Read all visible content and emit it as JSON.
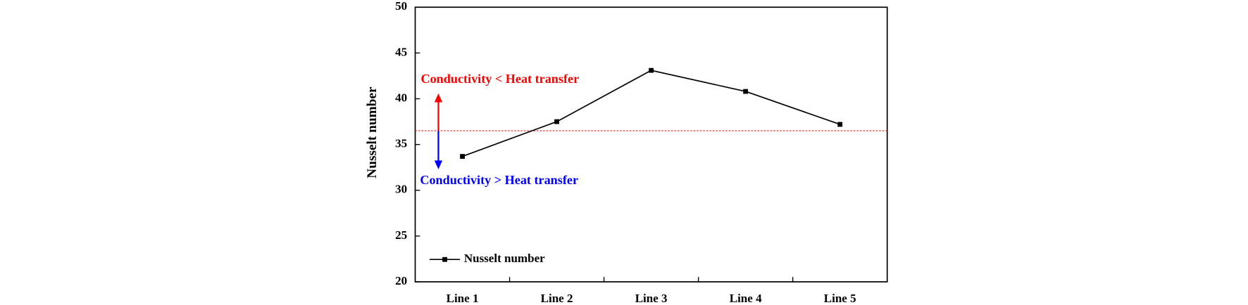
{
  "chart_data": {
    "type": "line",
    "y_label": "Nusselt number",
    "categories": [
      "Line 1",
      "Line 2",
      "Line 3",
      "Line 4",
      "Line 5"
    ],
    "series": [
      {
        "name": "Nusselt number",
        "color": "#000000",
        "values": [
          33.7,
          37.5,
          43.1,
          40.8,
          37.2
        ]
      }
    ],
    "ylim": [
      20,
      50
    ],
    "yticks": [
      20,
      25,
      30,
      35,
      40,
      45,
      50
    ],
    "reference_line": {
      "value": 36.5,
      "color": "#ff0000"
    },
    "annotations": [
      {
        "text": "Conductivity < Heat transfer",
        "color": "#ff0000"
      },
      {
        "text": "Conductivity > Heat transfer",
        "color": "#0000ff"
      }
    ],
    "legend": "lower left"
  }
}
